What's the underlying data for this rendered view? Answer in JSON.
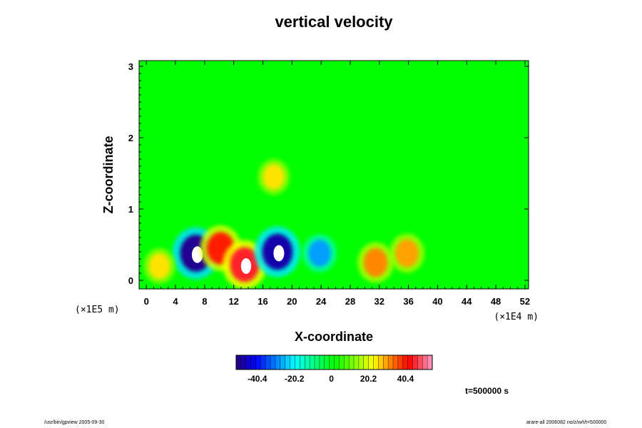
{
  "chart_data": {
    "type": "heatmap",
    "title": "vertical velocity",
    "xlabel": "X-coordinate",
    "ylabel": "Z-coordinate",
    "x_scale_note": "(×1E4 m)",
    "y_scale_note": "(×1E5 m)",
    "xlim": [
      -1,
      52.5
    ],
    "ylim": [
      -0.12,
      3.08
    ],
    "x_ticks": [
      "0",
      "4",
      "8",
      "12",
      "16",
      "20",
      "24",
      "28",
      "32",
      "36",
      "40",
      "44",
      "48",
      "52"
    ],
    "y_ticks": [
      "0",
      "1",
      "2",
      "3"
    ],
    "colorbar_ticks": [
      "-40.4",
      "-20.2",
      "0",
      "20.2",
      "40.4"
    ],
    "colorbar_range": [
      -52,
      55
    ],
    "time_label": "t=500000 s",
    "features": [
      {
        "x": 6.8,
        "z": 0.38,
        "value": -50,
        "note": "downdraft"
      },
      {
        "x": 10.2,
        "z": 0.45,
        "value": 40,
        "note": "updraft"
      },
      {
        "x": 13.5,
        "z": 0.22,
        "value": 45,
        "note": "updraft"
      },
      {
        "x": 18.0,
        "z": 0.4,
        "value": -48,
        "note": "downdraft"
      },
      {
        "x": 23.8,
        "z": 0.38,
        "value": -28,
        "note": "downdraft"
      },
      {
        "x": 31.5,
        "z": 0.25,
        "value": 32,
        "note": "updraft"
      },
      {
        "x": 35.8,
        "z": 0.38,
        "value": 30,
        "note": "updraft"
      },
      {
        "x": 17.5,
        "z": 1.45,
        "value": 25,
        "note": "updraft"
      },
      {
        "x": 1.8,
        "z": 0.2,
        "value": 25,
        "note": "updraft"
      }
    ]
  },
  "footer": {
    "left": "/usr/bin/gpview 2005-09-30",
    "right": "arare-all 2006082 no/z/w/t/t=500000"
  }
}
